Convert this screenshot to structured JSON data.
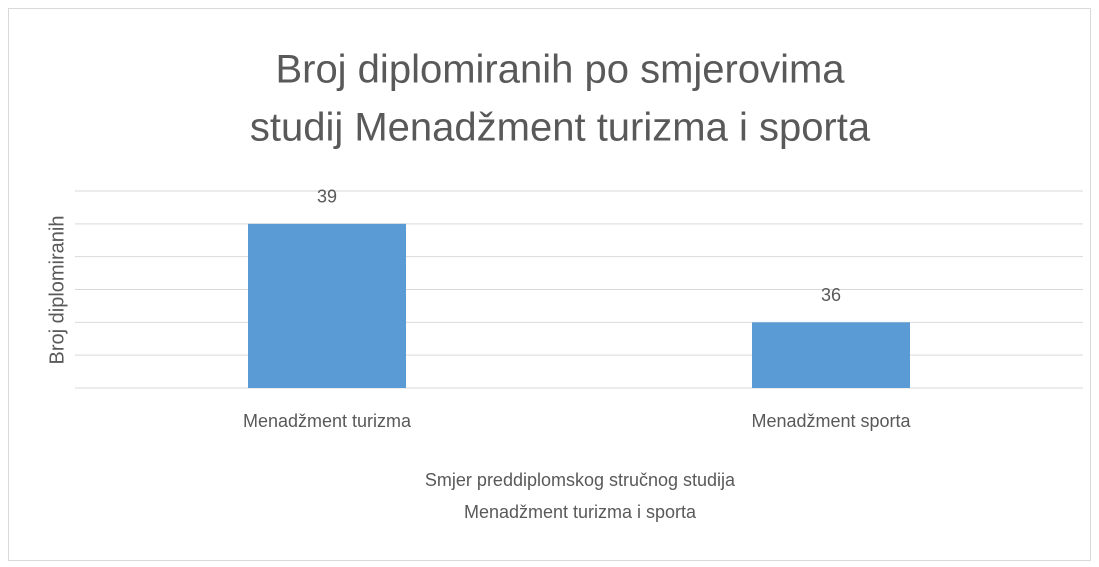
{
  "chart_data": {
    "type": "bar",
    "title": [
      "Broj diplomiranih po smjerovima",
      "studij Menadžment turizma i sporta"
    ],
    "x_label": [
      "Smjer preddiplomskog stručnog studija",
      "Menadžment turizma i sporta"
    ],
    "y_label": "Broj diplomiranih",
    "categories": [
      "Menadžment turizma",
      "Menadžment sporta"
    ],
    "values": [
      39,
      36
    ],
    "color": "#5b9bd5",
    "ylim": [
      34,
      40
    ],
    "yticks": [
      34,
      35,
      36,
      37,
      38,
      39,
      40
    ],
    "grid": true
  }
}
